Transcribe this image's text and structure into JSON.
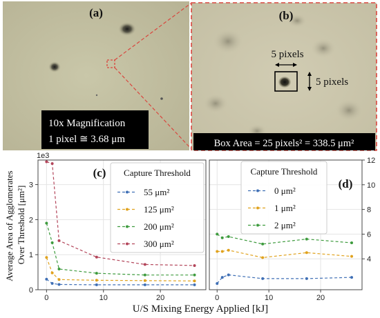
{
  "panels": {
    "a": {
      "label": "(a)",
      "caption_line1": "10x Magnification",
      "caption_line2": "1 pixel ≅ 3.68 μm"
    },
    "b": {
      "label": "(b)",
      "dim_top": "5 pixels",
      "dim_right": "5 pixels",
      "caption": "Box Area = 25 pixels² = 338.5 μm²"
    }
  },
  "colors": {
    "dash_red": "#d9463e",
    "series": [
      "#3f6fb5",
      "#e0a21d",
      "#3e9b3e",
      "#b3455a"
    ]
  },
  "chart_data": [
    {
      "type": "line",
      "panel_label": "(c)",
      "ylabel": "Average Area of Agglomerates Over Threshold [μm²]",
      "y_offset_label": "1e3",
      "ylim": [
        0,
        3700
      ],
      "xlim": [
        -1.5,
        28
      ],
      "yticks": [
        0,
        1,
        2,
        3
      ],
      "xticks": [
        0,
        10,
        20
      ],
      "grid": true,
      "legend_title": "Capture Threshold",
      "legend_position": "upper-right",
      "x": [
        0,
        1.0,
        2.2,
        8.8,
        17.3,
        26.0
      ],
      "series": [
        {
          "name": "55 μm²",
          "values": [
            300,
            180,
            150,
            140,
            140,
            140
          ]
        },
        {
          "name": "125 μm²",
          "values": [
            920,
            480,
            290,
            270,
            260,
            250
          ]
        },
        {
          "name": "200 μm²",
          "values": [
            1900,
            1340,
            590,
            470,
            420,
            420
          ]
        },
        {
          "name": "300 μm²",
          "values": [
            3650,
            3600,
            1400,
            930,
            720,
            690
          ]
        }
      ]
    },
    {
      "type": "line",
      "panel_label": "(d)",
      "ylim": [
        1.5,
        12
      ],
      "xlim": [
        -1.5,
        28
      ],
      "yticks": [
        4,
        6,
        8,
        10,
        12
      ],
      "xticks": [
        0,
        10,
        20
      ],
      "yaxis_side": "right",
      "grid": true,
      "legend_title": "Capture Threshold",
      "legend_position": "upper-left",
      "x": [
        0,
        1.0,
        2.2,
        8.8,
        17.3,
        26.0
      ],
      "series": [
        {
          "name": "0 μm²",
          "values": [
            2.0,
            2.5,
            2.7,
            2.4,
            2.4,
            2.5
          ]
        },
        {
          "name": "1 μm²",
          "values": [
            4.6,
            4.6,
            4.7,
            4.1,
            4.5,
            4.2
          ]
        },
        {
          "name": "2 μm²",
          "values": [
            6.0,
            5.7,
            5.8,
            5.2,
            5.6,
            5.3
          ]
        }
      ]
    }
  ],
  "shared": {
    "xlabel": "U/S Mixing Energy Applied [kJ]"
  }
}
